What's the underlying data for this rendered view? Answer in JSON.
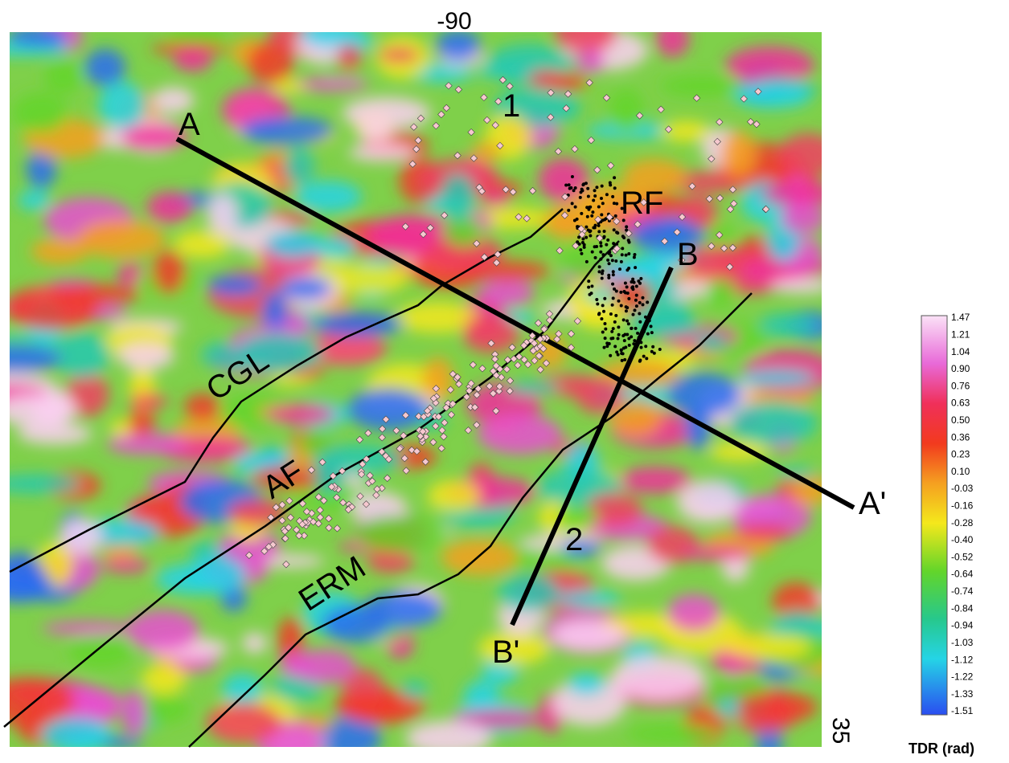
{
  "map": {
    "top_axis_label": "-90",
    "right_axis_label": "35",
    "labels": {
      "A": "A",
      "A_prime": "A'",
      "B": "B",
      "B_prime": "B'",
      "RF": "RF",
      "one": "1",
      "two": "2",
      "CGL": "CGL",
      "AF": "AF",
      "ERM": "ERM"
    },
    "colorbar": {
      "title": "TDR (rad)",
      "labels": [
        "1.47",
        "1.21",
        "1.04",
        "0.90",
        "0.76",
        "0.63",
        "0.50",
        "0.36",
        "0.23",
        "0.10",
        "-0.03",
        "-0.16",
        "-0.28",
        "-0.40",
        "-0.52",
        "-0.64",
        "-0.74",
        "-0.84",
        "-0.94",
        "-1.03",
        "-1.12",
        "-1.22",
        "-1.33",
        "-1.51"
      ]
    }
  }
}
